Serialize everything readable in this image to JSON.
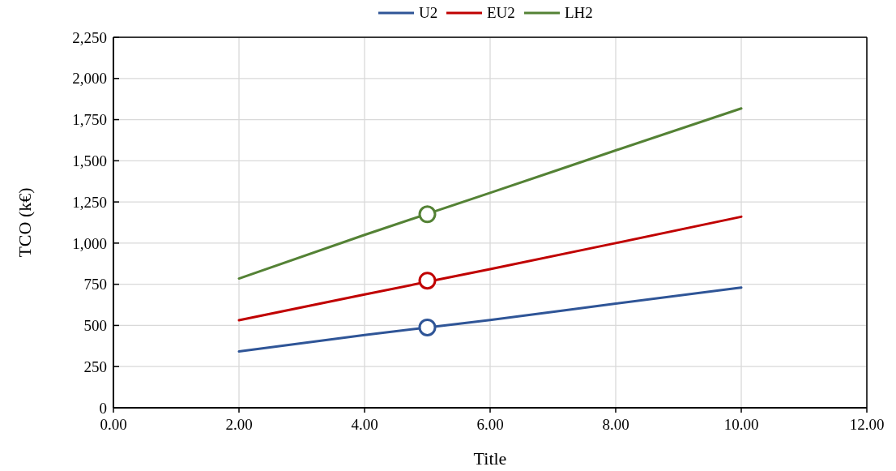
{
  "chart_data": {
    "type": "line",
    "xlabel": "Title",
    "ylabel": "TCO (k€)",
    "xlim": [
      0,
      12
    ],
    "xticks": [
      {
        "value": 0,
        "label": "0.00"
      },
      {
        "value": 2,
        "label": "2.00"
      },
      {
        "value": 4,
        "label": "4.00"
      },
      {
        "value": 6,
        "label": "6.00"
      },
      {
        "value": 8,
        "label": "8.00"
      },
      {
        "value": 10,
        "label": "10.00"
      },
      {
        "value": 12,
        "label": "12.00"
      }
    ],
    "ylim": [
      0,
      2250
    ],
    "yticks": [
      {
        "value": 0,
        "label": "0"
      },
      {
        "value": 250,
        "label": "250"
      },
      {
        "value": 500,
        "label": "500"
      },
      {
        "value": 750,
        "label": "750"
      },
      {
        "value": 1000,
        "label": "1,000"
      },
      {
        "value": 1250,
        "label": "1,250"
      },
      {
        "value": 1500,
        "label": "1,500"
      },
      {
        "value": 1750,
        "label": "1,750"
      },
      {
        "value": 2000,
        "label": "2,000"
      },
      {
        "value": 2250,
        "label": "2,250"
      }
    ],
    "grid": true,
    "legend": "top",
    "marker": "none",
    "line_style": "solid",
    "series": [
      {
        "name": "U2",
        "color": "#2f5597",
        "x": [
          2,
          4,
          6,
          8,
          10
        ],
        "values": [
          342,
          442,
          533,
          633,
          730
        ]
      },
      {
        "name": "EU2",
        "color": "#c00000",
        "x": [
          2,
          4,
          6,
          8,
          10
        ],
        "values": [
          532,
          688,
          842,
          1000,
          1160
        ]
      },
      {
        "name": "LH2",
        "color": "#548235",
        "x": [
          2,
          4,
          6,
          8,
          10
        ],
        "values": [
          785,
          1050,
          1305,
          1563,
          1818
        ]
      },
      {
        "type": "scatter",
        "marker": "circle",
        "color": "#2f5597",
        "x": [
          5
        ],
        "values": [
          488
        ]
      },
      {
        "type": "scatter",
        "marker": "circle",
        "color": "#c00000",
        "x": [
          5
        ],
        "values": [
          772
        ]
      },
      {
        "type": "scatter",
        "marker": "circle",
        "color": "#548235",
        "x": [
          5
        ],
        "values": [
          1175
        ]
      }
    ]
  }
}
